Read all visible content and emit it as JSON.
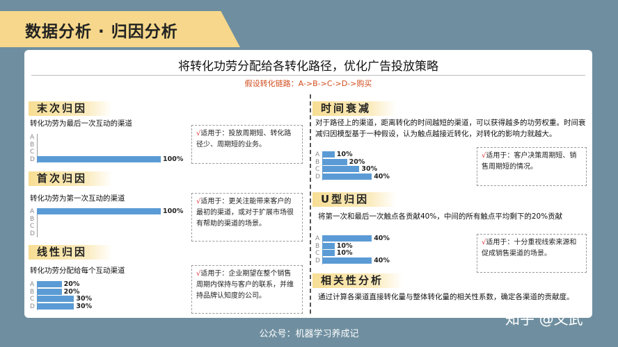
{
  "header": {
    "title": "数据分析 · 归因分析"
  },
  "subtitle": "将转化功劳分配给各转化路径，优化广告投放策略",
  "chain": "假设转化链路：A->B->C->D->购买",
  "sections": {
    "last_touch": {
      "title": "末次归因",
      "desc": "转化功劳为最后一次互动的渠道",
      "note_check": "√",
      "note": "适用于：投放周期短、转化路径少、周期短的业务。"
    },
    "first_touch": {
      "title": "首次归因",
      "desc": "转化功劳为第一次互动的渠道",
      "note_check": "√",
      "note": "适用于：更关注能带来客户的最初的渠道，或对于扩展市场很有帮助的渠道的场景。"
    },
    "linear": {
      "title": "线性归因",
      "desc": "转化功劳分配给每个互动渠道",
      "note_check": "√",
      "note": "适用于：企业期望在整个销售周期内保持与客户的联系，并维持品牌认知度的公司。"
    },
    "time_decay": {
      "title": "时间衰减",
      "desc": "对于路径上的渠道，距离转化的时间越短的渠道，可以获得越多的功劳权重。时间衰减归因模型基于一种假设，认为触点越接近转化，对转化的影响力就越大。",
      "note_check": "√",
      "note": "适用于：客户决策周期短、销售周期短的情况。"
    },
    "u_shape": {
      "title": "U型归因",
      "desc": "将第一次和最后一次触点各贡献40%，中间的所有触点平均剩下的20%贡献",
      "note_check": "√",
      "note": "适用于：十分重视线索来源和促成销售渠道的场景。"
    },
    "correlation": {
      "title": "相关性分析",
      "desc": "通过计算各渠道直接转化量与整体转化量的相关性系数，确定各渠道的贡献度。"
    }
  },
  "chart_data": [
    {
      "type": "bar",
      "title": "末次归因",
      "categories": [
        "A",
        "B",
        "C",
        "D"
      ],
      "values": [
        0,
        0,
        0,
        100
      ],
      "value_labels": [
        "",
        "",
        "",
        "100%"
      ],
      "unit": "%"
    },
    {
      "type": "bar",
      "title": "首次归因",
      "categories": [
        "A",
        "B",
        "C",
        "D"
      ],
      "values": [
        100,
        0,
        0,
        0
      ],
      "value_labels": [
        "100%",
        "",
        "",
        ""
      ],
      "unit": "%"
    },
    {
      "type": "bar",
      "title": "线性归因",
      "categories": [
        "A",
        "B",
        "C",
        "D"
      ],
      "values": [
        20,
        20,
        30,
        30
      ],
      "value_labels": [
        "20%",
        "20%",
        "30%",
        "30%"
      ],
      "unit": "%"
    },
    {
      "type": "bar",
      "title": "时间衰减",
      "categories": [
        "A",
        "B",
        "C",
        "D"
      ],
      "values": [
        10,
        20,
        30,
        40
      ],
      "value_labels": [
        "10%",
        "20%",
        "30%",
        "40%"
      ],
      "unit": "%"
    },
    {
      "type": "bar",
      "title": "U型归因",
      "categories": [
        "A",
        "B",
        "C",
        "D"
      ],
      "values": [
        40,
        10,
        10,
        40
      ],
      "value_labels": [
        "40%",
        "10%",
        "10%",
        "40%"
      ],
      "unit": "%"
    }
  ],
  "colors": {
    "bar": "#5b9bd5",
    "accent": "#d14c1c",
    "header_band": "#f6d78b",
    "background": "#6f8fa0"
  },
  "footer": "公众号：机器学习养成记",
  "watermark": "知乎 @文武"
}
